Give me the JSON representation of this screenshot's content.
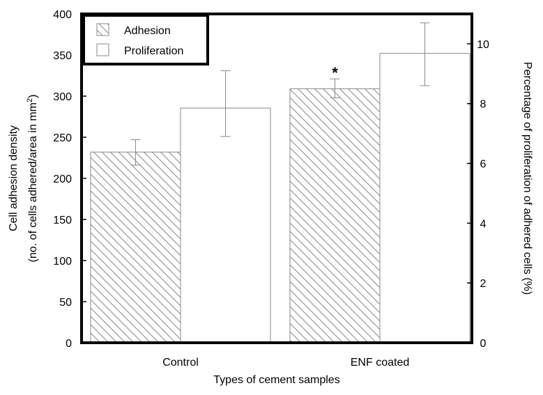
{
  "chart_data": {
    "type": "bar",
    "xlabel": "Types of cement samples",
    "ylabel_line1": "Cell adhesion density",
    "ylabel_line2_prefix": "(no. of cells adhered/area in mm",
    "ylabel_line2_sup": "2",
    "ylabel_line2_suffix": ")",
    "y2label": "Percentage of proliferation of adhered cells (%)",
    "categories": [
      "Control",
      "ENF coated"
    ],
    "ylim": [
      0,
      400
    ],
    "y_ticks": [
      0,
      50,
      100,
      150,
      200,
      250,
      300,
      350,
      400
    ],
    "y2lim": [
      0,
      11
    ],
    "y2_ticks": [
      0,
      2,
      4,
      6,
      8,
      10
    ],
    "series": [
      {
        "name": "Adhesion",
        "axis": "left",
        "pattern": "diagonal-hatch",
        "values": [
          232,
          309
        ],
        "error_low": [
          216,
          298
        ],
        "error_high": [
          247,
          321
        ]
      },
      {
        "name": "Proliferation",
        "axis": "right",
        "pattern": "none",
        "values": [
          7.85,
          9.68
        ],
        "error_low": [
          6.9,
          8.6
        ],
        "error_high": [
          9.1,
          10.7
        ]
      }
    ],
    "annotations": [
      {
        "text": "*",
        "category": "ENF coated",
        "series": "Adhesion"
      }
    ],
    "legend_placement": "top-left",
    "grid": false,
    "colors": {
      "frame": "#000000",
      "bar_stroke": "#888888",
      "hatch": "#888888",
      "bar_fill": "#ffffff"
    }
  }
}
